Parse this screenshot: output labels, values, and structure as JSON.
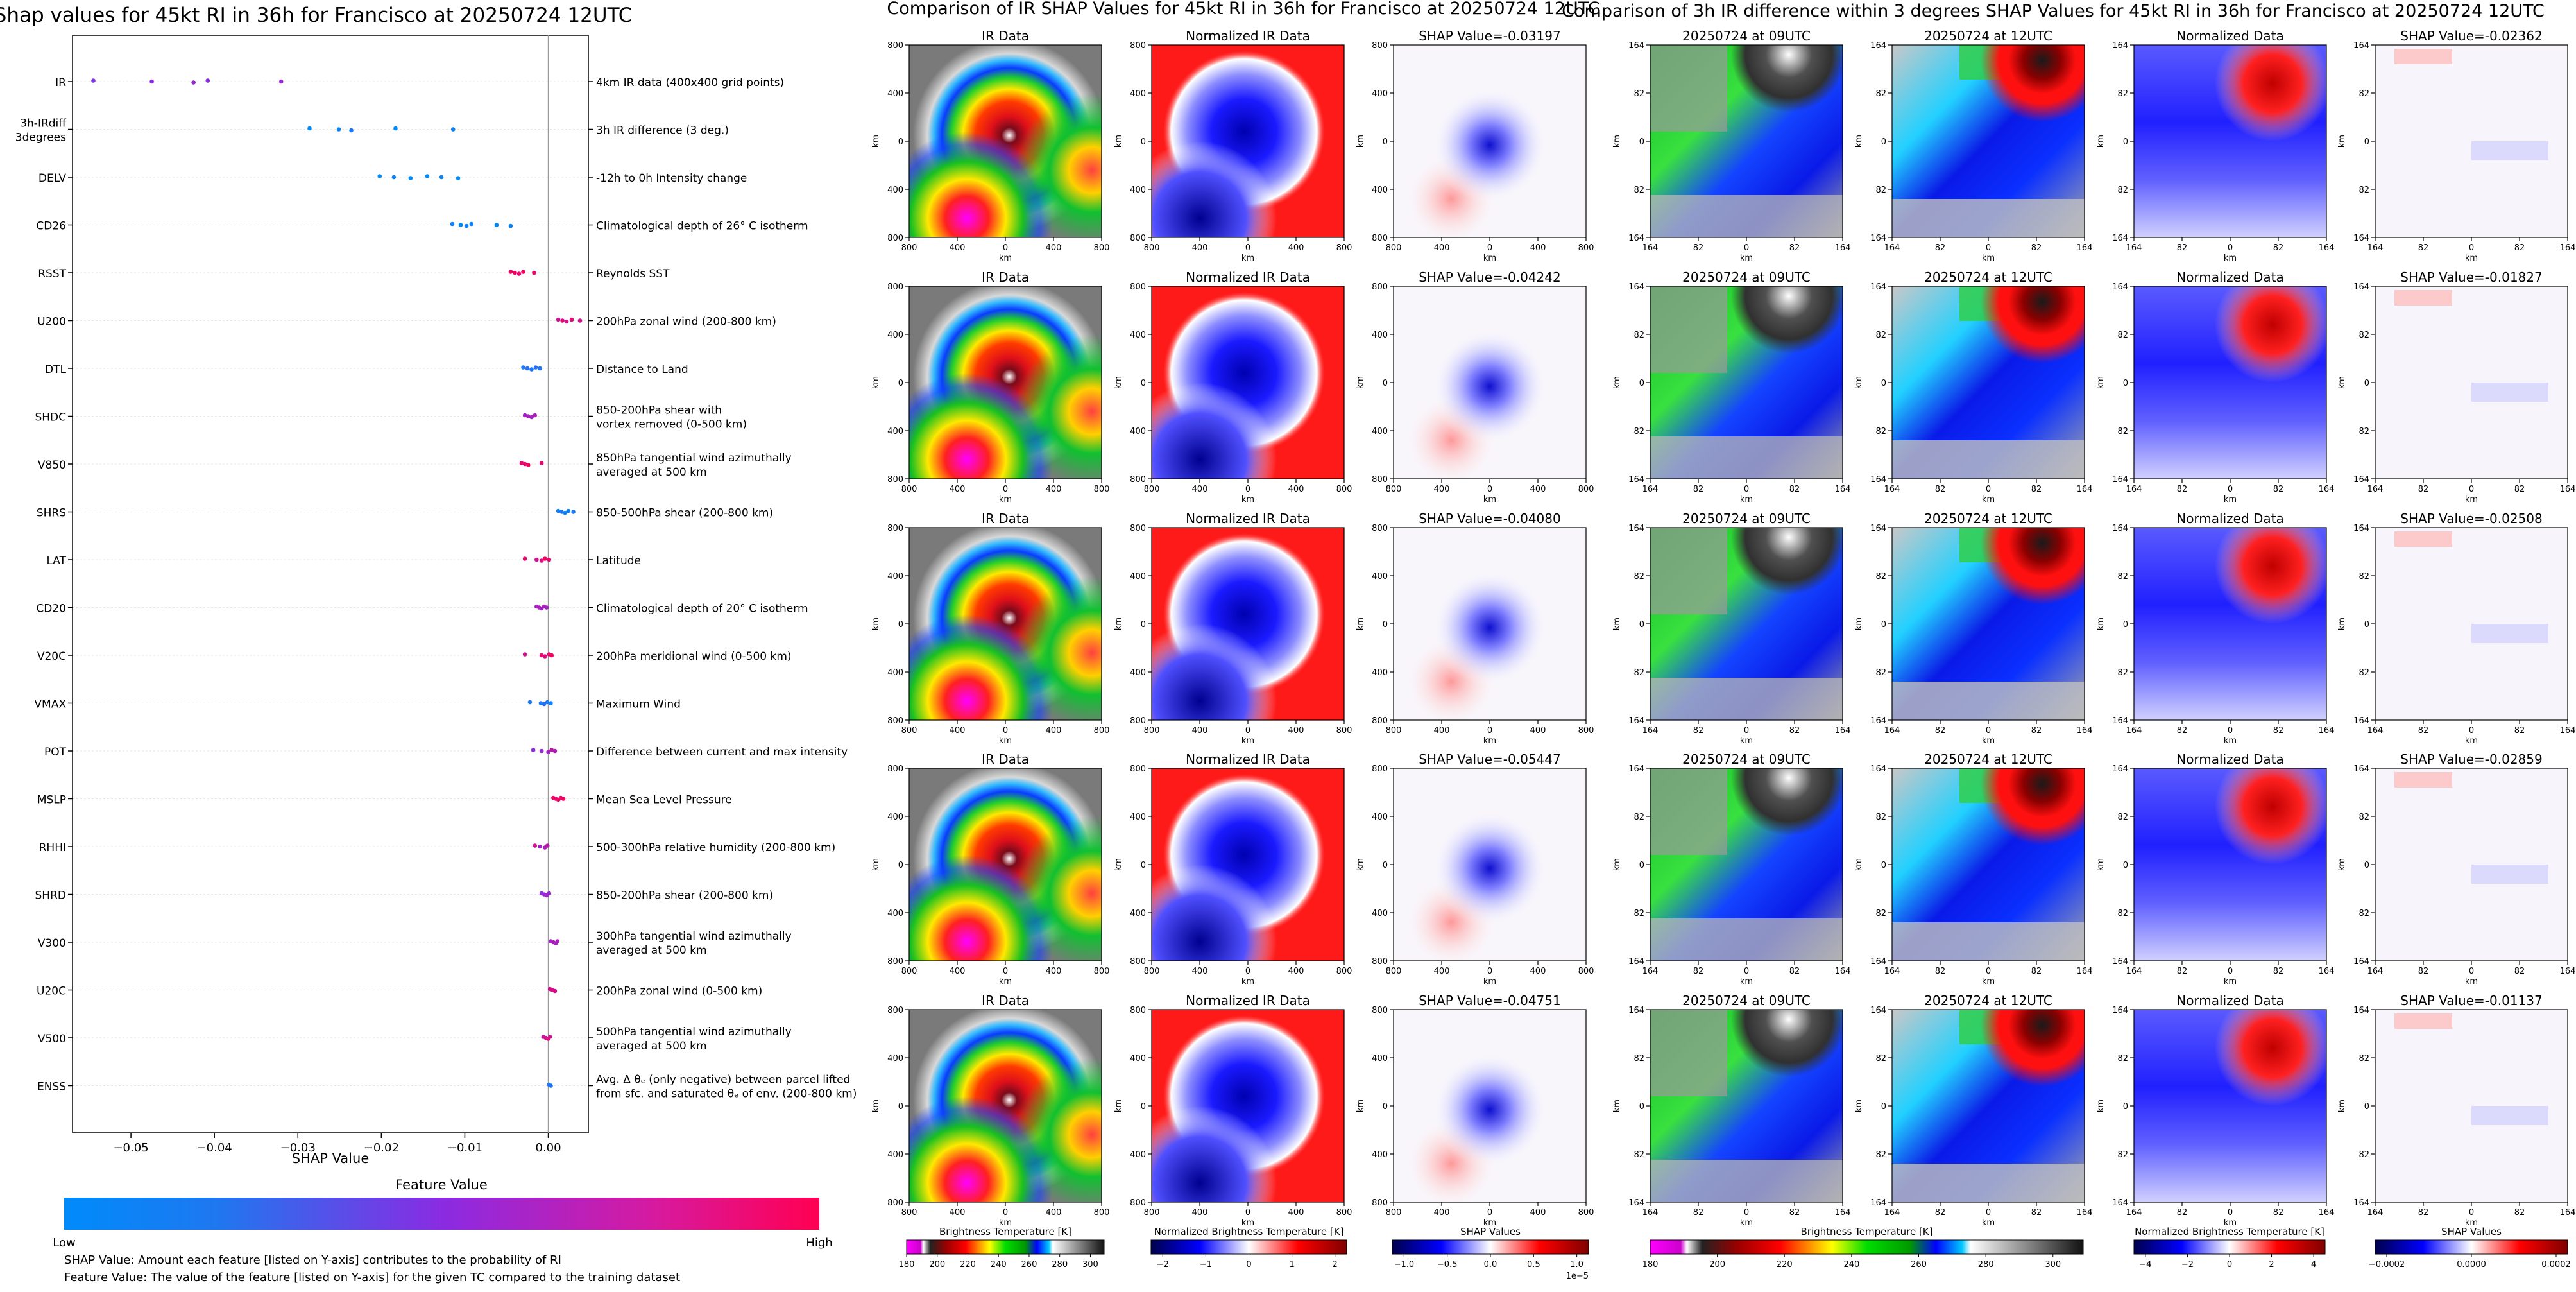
{
  "shap_panel": {
    "title": "Shap values for 45kt RI in 36h for Francisco at 20250724 12UTC",
    "xlabel": "SHAP Value",
    "colorbar_title": "Feature Value",
    "colorbar_low": "Low",
    "colorbar_high": "High",
    "footnote_1": "SHAP Value: Amount each feature [listed on Y-axis] contributes to the probability of RI",
    "footnote_2": "Feature Value: The value of the feature [listed on Y-axis] for the given TC compared to the training dataset"
  },
  "ir_panel": {
    "title": "Comparison of IR SHAP Values for 45kt RI in 36h for Francisco at 20250724 12UTC",
    "col_titles": [
      "IR Data",
      "Normalized IR Data"
    ],
    "shap_titles": [
      "SHAP Value=-0.03197",
      "SHAP Value=-0.04242",
      "SHAP Value=-0.04080",
      "SHAP Value=-0.05447",
      "SHAP Value=-0.04751"
    ],
    "axis_label": "km",
    "ticks": [
      "800",
      "400",
      "0",
      "400",
      "800"
    ],
    "xticks": [
      "800",
      "400",
      "0",
      "400",
      "800"
    ],
    "colorbars": [
      {
        "label": "Brightness Temperature [K]",
        "ticks": [
          "180",
          "200",
          "220",
          "240",
          "260",
          "280",
          "300"
        ],
        "kind": "ir"
      },
      {
        "label": "Normalized Brightness Temperature [K]",
        "ticks": [
          "−2",
          "−1",
          "0",
          "1",
          "2"
        ],
        "kind": "bwr"
      },
      {
        "label": "SHAP Values",
        "ticks": [
          "−1.0",
          "−0.5",
          "0.0",
          "0.5",
          "1.0"
        ],
        "kind": "bwr",
        "offset": "1e−5"
      }
    ]
  },
  "diff_panel": {
    "title": "Comparison of 3h IR difference within 3 degrees SHAP Values for 45kt RI in 36h for Francisco at 20250724 12UTC",
    "col_titles": [
      "20250724 at 09UTC",
      "20250724 at 12UTC",
      "Normalized Data"
    ],
    "shap_titles": [
      "SHAP Value=-0.02362",
      "SHAP Value=-0.01827",
      "SHAP Value=-0.02508",
      "SHAP Value=-0.02859",
      "SHAP Value=-0.01137"
    ],
    "axis_label": "km",
    "ticks": [
      "164",
      "82",
      "0",
      "82",
      "164"
    ],
    "xticks": [
      "164",
      "82",
      "0",
      "82",
      "164"
    ],
    "colorbars": [
      {
        "label": "Brightness Temperature [K]",
        "ticks": [
          "180",
          "200",
          "220",
          "240",
          "260",
          "280",
          "300"
        ],
        "kind": "ir"
      },
      {
        "label": "Normalized Brightness Temperature [K]",
        "ticks": [
          "−4",
          "−2",
          "0",
          "2",
          "4"
        ],
        "kind": "bwr"
      },
      {
        "label": "SHAP Values",
        "ticks": [
          "−0.0002",
          "0.0000",
          "0.0002"
        ],
        "kind": "bwr"
      }
    ]
  },
  "colors": {
    "low": "#008bfb",
    "mid": "#8a2be2",
    "high": "#ff0052"
  },
  "chart_data": {
    "type": "scatter",
    "title": "Shap values for 45kt RI in 36h for Francisco at 20250724 12UTC",
    "xlabel": "SHAP Value",
    "ylabel": "",
    "xlim": [
      -0.057,
      0.0048
    ],
    "x_ticks": [
      -0.05,
      -0.04,
      -0.03,
      -0.02,
      -0.01,
      0.0
    ],
    "x_tick_labels": [
      "−0.05",
      "−0.04",
      "−0.03",
      "−0.02",
      "−0.01",
      "0.00"
    ],
    "grid": false,
    "features": [
      {
        "name": "IR",
        "desc": [
          "4km IR data (400x400 grid points)"
        ],
        "points": [
          [
            -0.0545,
            0.45
          ],
          [
            -0.0475,
            0.5
          ],
          [
            -0.0425,
            0.55
          ],
          [
            -0.0408,
            0.5
          ],
          [
            -0.032,
            0.55
          ]
        ]
      },
      {
        "name": [
          "3h-IRdiff",
          "3degrees"
        ],
        "desc": [
          "3h IR difference (3 deg.)"
        ],
        "points": [
          [
            -0.0286,
            0.0
          ],
          [
            -0.0251,
            0.05
          ],
          [
            -0.0236,
            0.1
          ],
          [
            -0.0183,
            0.0
          ],
          [
            -0.0114,
            0.05
          ]
        ]
      },
      {
        "name": "DELV",
        "desc": [
          "-12h to 0h Intensity change"
        ],
        "points": [
          [
            -0.0202,
            0.0
          ],
          [
            -0.0185,
            0.05
          ],
          [
            -0.0165,
            0.0
          ],
          [
            -0.0145,
            0.0
          ],
          [
            -0.0128,
            0.05
          ],
          [
            -0.0108,
            0.0
          ]
        ]
      },
      {
        "name": "CD26",
        "desc": [
          "Climatological depth of 26° C isotherm"
        ],
        "points": [
          [
            -0.0115,
            0.05
          ],
          [
            -0.0105,
            0.0
          ],
          [
            -0.0098,
            0.05
          ],
          [
            -0.0092,
            0.05
          ],
          [
            -0.0062,
            0.0
          ],
          [
            -0.0045,
            0.05
          ]
        ]
      },
      {
        "name": "RSST",
        "desc": [
          "Reynolds SST"
        ],
        "points": [
          [
            -0.0045,
            0.95
          ],
          [
            -0.004,
            0.95
          ],
          [
            -0.0035,
            0.9
          ],
          [
            -0.003,
            0.95
          ],
          [
            -0.0017,
            0.9
          ]
        ]
      },
      {
        "name": "U200",
        "desc": [
          "200hPa zonal wind (200-800 km)"
        ],
        "points": [
          [
            0.0012,
            0.8
          ],
          [
            0.0017,
            0.85
          ],
          [
            0.0022,
            0.8
          ],
          [
            0.0028,
            0.85
          ],
          [
            0.0038,
            0.8
          ]
        ]
      },
      {
        "name": "DTL",
        "desc": [
          "Distance to Land"
        ],
        "points": [
          [
            -0.003,
            0.1
          ],
          [
            -0.0025,
            0.15
          ],
          [
            -0.002,
            0.1
          ],
          [
            -0.0015,
            0.15
          ],
          [
            -0.001,
            0.1
          ]
        ]
      },
      {
        "name": "SHDC",
        "desc": [
          "850-200hPa shear with",
          "vortex removed (0-500 km)"
        ],
        "points": [
          [
            -0.0028,
            0.6
          ],
          [
            -0.0024,
            0.65
          ],
          [
            -0.002,
            0.6
          ],
          [
            -0.0016,
            0.65
          ]
        ]
      },
      {
        "name": "V850",
        "desc": [
          "850hPa tangential wind azimuthally",
          "averaged at 500 km"
        ],
        "points": [
          [
            -0.0032,
            0.9
          ],
          [
            -0.0028,
            0.92
          ],
          [
            -0.0024,
            0.95
          ],
          [
            -0.0008,
            0.9
          ]
        ]
      },
      {
        "name": "SHRS",
        "desc": [
          "850-500hPa shear (200-800 km)"
        ],
        "points": [
          [
            0.0012,
            0.05
          ],
          [
            0.0016,
            0.1
          ],
          [
            0.002,
            0.05
          ],
          [
            0.0024,
            0.05
          ],
          [
            0.003,
            0.1
          ]
        ]
      },
      {
        "name": "LAT",
        "desc": [
          "Latitude"
        ],
        "points": [
          [
            -0.0028,
            0.9
          ],
          [
            -0.0014,
            0.8
          ],
          [
            -0.0008,
            0.85
          ],
          [
            -0.0004,
            0.95
          ],
          [
            0.0001,
            0.9
          ]
        ]
      },
      {
        "name": "CD20",
        "desc": [
          "Climatological depth of 20° C isotherm"
        ],
        "points": [
          [
            -0.0014,
            0.6
          ],
          [
            -0.0011,
            0.65
          ],
          [
            -0.0008,
            0.6
          ],
          [
            -0.0005,
            0.65
          ],
          [
            -0.0002,
            0.6
          ]
        ]
      },
      {
        "name": "V20C",
        "desc": [
          "200hPa meridional wind (0-500 km)"
        ],
        "points": [
          [
            -0.0028,
            0.8
          ],
          [
            -0.0008,
            0.9
          ],
          [
            -0.0004,
            0.85
          ],
          [
            0.0001,
            0.9
          ],
          [
            0.0004,
            0.95
          ]
        ]
      },
      {
        "name": "VMAX",
        "desc": [
          "Maximum Wind"
        ],
        "points": [
          [
            -0.0022,
            0.1
          ],
          [
            -0.0009,
            0.1
          ],
          [
            -0.0005,
            0.15
          ],
          [
            -0.0001,
            0.1
          ],
          [
            0.0003,
            0.05
          ]
        ]
      },
      {
        "name": "POT",
        "desc": [
          "Difference between current and max intensity"
        ],
        "points": [
          [
            -0.0018,
            0.5
          ],
          [
            -0.0008,
            0.55
          ],
          [
            0.0,
            0.6
          ],
          [
            0.0004,
            0.7
          ],
          [
            0.0008,
            0.65
          ]
        ]
      },
      {
        "name": "MSLP",
        "desc": [
          "Mean Sea Level Pressure"
        ],
        "points": [
          [
            0.0006,
            0.95
          ],
          [
            0.0009,
            0.9
          ],
          [
            0.0012,
            0.95
          ],
          [
            0.0015,
            0.9
          ],
          [
            0.0018,
            0.95
          ]
        ]
      },
      {
        "name": "RHHI",
        "desc": [
          "500-300hPa relative humidity (200-800 km)"
        ],
        "points": [
          [
            -0.0016,
            0.8
          ],
          [
            -0.001,
            0.6
          ],
          [
            -0.0004,
            0.65
          ],
          [
            -0.0001,
            0.7
          ]
        ]
      },
      {
        "name": "SHRD",
        "desc": [
          "850-200hPa shear (200-800 km)"
        ],
        "points": [
          [
            -0.0008,
            0.5
          ],
          [
            -0.0005,
            0.55
          ],
          [
            -0.0002,
            0.6
          ],
          [
            0.0001,
            0.55
          ]
        ]
      },
      {
        "name": "V300",
        "desc": [
          "300hPa tangential wind azimuthally",
          "averaged at 500 km"
        ],
        "points": [
          [
            0.0003,
            0.6
          ],
          [
            0.0006,
            0.65
          ],
          [
            0.0009,
            0.6
          ],
          [
            0.0011,
            0.65
          ]
        ]
      },
      {
        "name": "U20C",
        "desc": [
          "200hPa zonal wind (0-500 km)"
        ],
        "points": [
          [
            0.0002,
            0.8
          ],
          [
            0.0005,
            0.85
          ],
          [
            0.0008,
            0.8
          ]
        ]
      },
      {
        "name": "V500",
        "desc": [
          "500hPa tangential wind azimuthally",
          "averaged at 500 km"
        ],
        "points": [
          [
            -0.0006,
            0.75
          ],
          [
            -0.0003,
            0.8
          ],
          [
            0.0,
            0.85
          ],
          [
            0.0002,
            0.8
          ]
        ]
      },
      {
        "name": "ENSS",
        "desc": [
          "Avg. Δ θₑ (only negative) between parcel lifted",
          "from sfc. and saturated θₑ of env. (200-800 km)"
        ],
        "points": [
          [
            0.0001,
            0.1
          ],
          [
            0.0003,
            0.1
          ]
        ]
      }
    ]
  }
}
